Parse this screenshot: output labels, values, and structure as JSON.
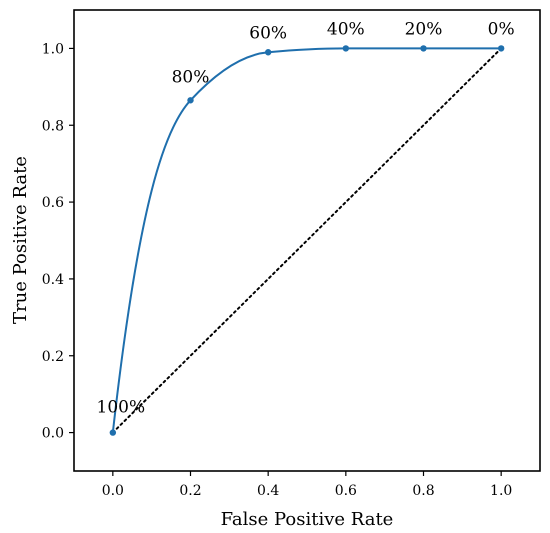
{
  "chart_data": {
    "type": "line",
    "title": "",
    "xlabel": "False Positive Rate",
    "ylabel": "True Positive Rate",
    "xlim": [
      -0.1,
      1.1
    ],
    "ylim": [
      -0.1,
      1.1
    ],
    "xticks": [
      0.0,
      0.2,
      0.4,
      0.6,
      0.8,
      1.0
    ],
    "xtick_labels": [
      "0.0",
      "0.2",
      "0.4",
      "0.6",
      "0.8",
      "1.0"
    ],
    "yticks": [
      0.0,
      0.2,
      0.4,
      0.6,
      0.8,
      1.0
    ],
    "ytick_labels": [
      "0.0",
      "0.2",
      "0.4",
      "0.6",
      "0.8",
      "1.0"
    ],
    "grid": false,
    "legend": "none",
    "series": [
      {
        "x": [
          0.0,
          0.2,
          0.4,
          0.6,
          0.8,
          1.0
        ],
        "y": [
          0.0,
          0.865,
          0.99,
          1.0,
          1.0,
          1.0
        ],
        "point_labels": [
          "100%",
          "80%",
          "60%",
          "40%",
          "20%",
          "0%"
        ],
        "color": "#1f6fad",
        "style": "smooth-line-with-markers"
      },
      {
        "x": [
          0.0,
          1.0
        ],
        "y": [
          0.0,
          1.0
        ],
        "color": "#000000",
        "style": "dotted"
      }
    ]
  }
}
